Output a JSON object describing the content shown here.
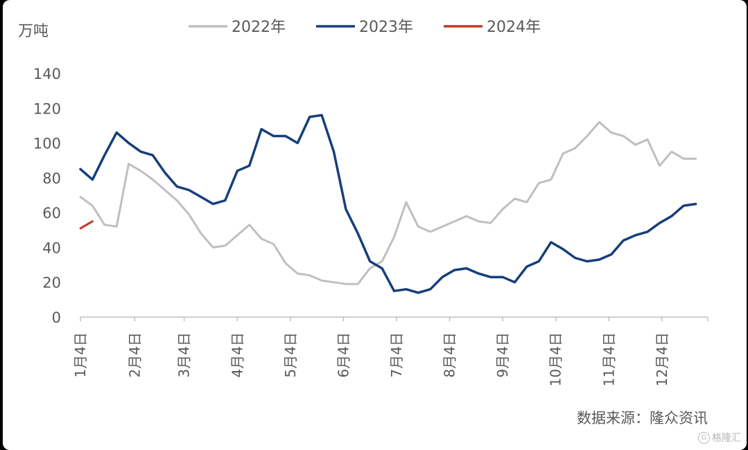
{
  "chart_data": {
    "type": "line",
    "unit_label": "万吨",
    "ylim": [
      0,
      140
    ],
    "yticks": [
      0,
      20,
      40,
      60,
      80,
      100,
      120,
      140
    ],
    "x_range": [
      1,
      53
    ],
    "xticks": [
      {
        "label": "1月4日",
        "x": 1
      },
      {
        "label": "2月4日",
        "x": 5.5
      },
      {
        "label": "3月4日",
        "x": 9.6
      },
      {
        "label": "4月4日",
        "x": 14
      },
      {
        "label": "5月4日",
        "x": 18.4
      },
      {
        "label": "6月4日",
        "x": 22.8
      },
      {
        "label": "7月4日",
        "x": 27.2
      },
      {
        "label": "8月4日",
        "x": 31.6
      },
      {
        "label": "9月4日",
        "x": 36
      },
      {
        "label": "10月4日",
        "x": 40.4
      },
      {
        "label": "11月4日",
        "x": 44.8
      },
      {
        "label": "12月4日",
        "x": 49.2
      }
    ],
    "grid": false,
    "legend_position": "top",
    "series": [
      {
        "name": "2022年",
        "color": "#bfbfbf",
        "values": [
          69,
          64,
          53,
          52,
          88,
          84,
          79,
          73,
          67,
          59,
          48,
          40,
          41,
          47,
          53,
          45,
          42,
          31,
          25,
          24,
          21,
          20,
          19,
          19,
          28,
          32,
          46,
          66,
          52,
          49,
          52,
          55,
          58,
          55,
          54,
          62,
          68,
          66,
          77,
          79,
          94,
          97,
          104,
          112,
          106,
          104,
          99,
          102,
          87,
          95,
          91,
          91
        ]
      },
      {
        "name": "2023年",
        "color": "#163e7c",
        "values": [
          85,
          79,
          93,
          106,
          100,
          95,
          93,
          83,
          75,
          73,
          69,
          65,
          67,
          84,
          87,
          108,
          104,
          104,
          100,
          115,
          116,
          95,
          62,
          48,
          32,
          28,
          15,
          16,
          14,
          16,
          23,
          27,
          28,
          25,
          23,
          23,
          20,
          29,
          32,
          43,
          39,
          34,
          32,
          33,
          36,
          44,
          47,
          49,
          54,
          58,
          64,
          65
        ]
      },
      {
        "name": "2024年",
        "color": "#c0392b",
        "values": [
          51,
          55
        ]
      }
    ]
  },
  "source_text": "数据来源：隆众资讯",
  "watermark": {
    "logo": "G",
    "text": "格隆汇"
  }
}
